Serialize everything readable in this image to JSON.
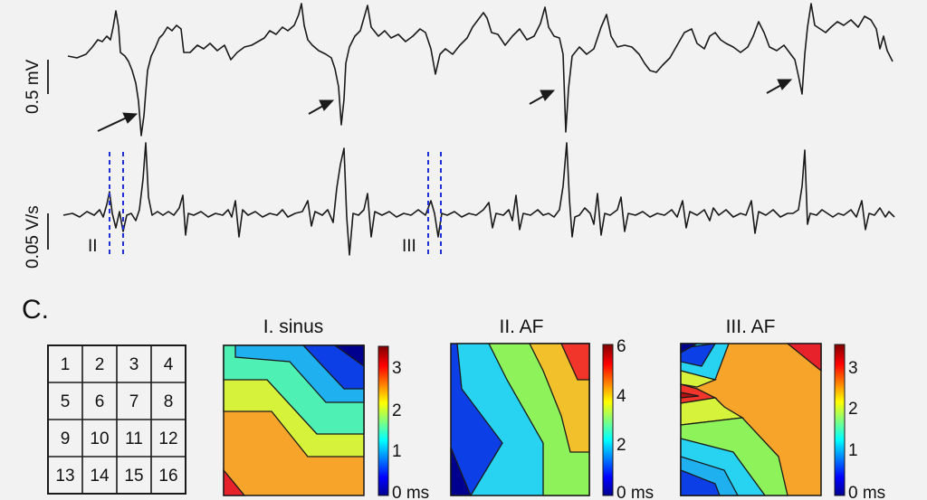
{
  "scale_labels": {
    "top": "0.5 mV",
    "bottom": "0.05 V/s"
  },
  "segment_labels": [
    "II",
    "III"
  ],
  "panel_label": "C.",
  "grid_numbers": [
    "1",
    "2",
    "3",
    "4",
    "5",
    "6",
    "7",
    "8",
    "9",
    "10",
    "11",
    "12",
    "13",
    "14",
    "15",
    "16"
  ],
  "maps": [
    {
      "title": "I. sinus",
      "ticks": [
        "3",
        "2",
        "1",
        "0 ms"
      ]
    },
    {
      "title": "II. AF",
      "ticks": [
        "6",
        "4",
        "2",
        "0 ms"
      ]
    },
    {
      "title": "III. AF",
      "ticks": [
        "3",
        "2",
        "1",
        "0 ms"
      ]
    }
  ],
  "colors": {
    "line": "#1a1a1a",
    "marker": "#1f2fd6",
    "background": "#f1f2f1"
  }
}
